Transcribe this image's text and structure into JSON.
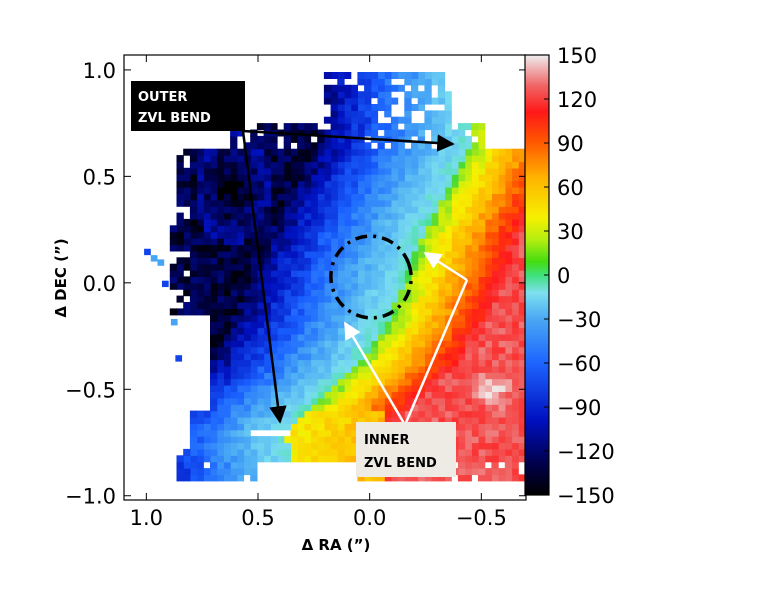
{
  "chart_data": {
    "type": "heatmap",
    "title": "",
    "xlabel": "Δ RA (”)",
    "ylabel": "Δ DEC (”)",
    "xlim": [
      1.1,
      -0.7
    ],
    "ylim": [
      -1.02,
      1.07
    ],
    "x_inverted": true,
    "x_ticks": [
      {
        "value": 1.0,
        "label": "1.0"
      },
      {
        "value": 0.5,
        "label": "0.5"
      },
      {
        "value": 0.0,
        "label": "0.0"
      },
      {
        "value": -0.5,
        "label": "−0.5"
      }
    ],
    "y_ticks": [
      {
        "value": 1.0,
        "label": "1.0"
      },
      {
        "value": 0.5,
        "label": "0.5"
      },
      {
        "value": 0.0,
        "label": "0.0"
      },
      {
        "value": -0.5,
        "label": "−0.5"
      },
      {
        "value": -1.0,
        "label": "−1.0"
      }
    ],
    "colorbar": {
      "range": [
        -150,
        150
      ],
      "colormap": "spectral (black-blue-cyan-green-yellow-red-white)",
      "ticks": [
        {
          "value": 150,
          "label": "150"
        },
        {
          "value": 120,
          "label": "120"
        },
        {
          "value": 90,
          "label": "90"
        },
        {
          "value": 60,
          "label": "60"
        },
        {
          "value": 30,
          "label": "30"
        },
        {
          "value": 0,
          "label": "0"
        },
        {
          "value": -30,
          "label": "−30"
        },
        {
          "value": -60,
          "label": "−60"
        },
        {
          "value": -90,
          "label": "−90"
        },
        {
          "value": -120,
          "label": "−120"
        },
        {
          "value": -150,
          "label": "−150"
        }
      ]
    },
    "field_model": {
      "description_values_in_colorbar_units": true,
      "zero_velocity_line": [
        [
          -0.45,
          0.65
        ],
        [
          -0.22,
          0.2
        ],
        [
          -0.08,
          -0.18
        ],
        [
          0.05,
          -0.38
        ],
        [
          0.38,
          -0.7
        ]
      ],
      "black_region_center": [
        0.62,
        0.45
      ],
      "redwhite_region_center": [
        -0.55,
        -0.5
      ]
    },
    "annotations": [
      {
        "text_lines": [
          "OUTER",
          "ZVL BEND"
        ],
        "style": "white text on black box",
        "arrows_to": [
          [
            -0.45,
            0.67
          ],
          [
            0.4,
            -0.66
          ]
        ]
      },
      {
        "text_lines": [
          "INNER",
          "ZVL BEND"
        ],
        "style": "black text on light box",
        "arrows_to": [
          [
            -0.28,
            0.14
          ],
          [
            0.08,
            -0.2
          ]
        ]
      },
      {
        "shape": "dash-dot ellipse",
        "center": [
          -0.1,
          0.03
        ]
      }
    ]
  }
}
